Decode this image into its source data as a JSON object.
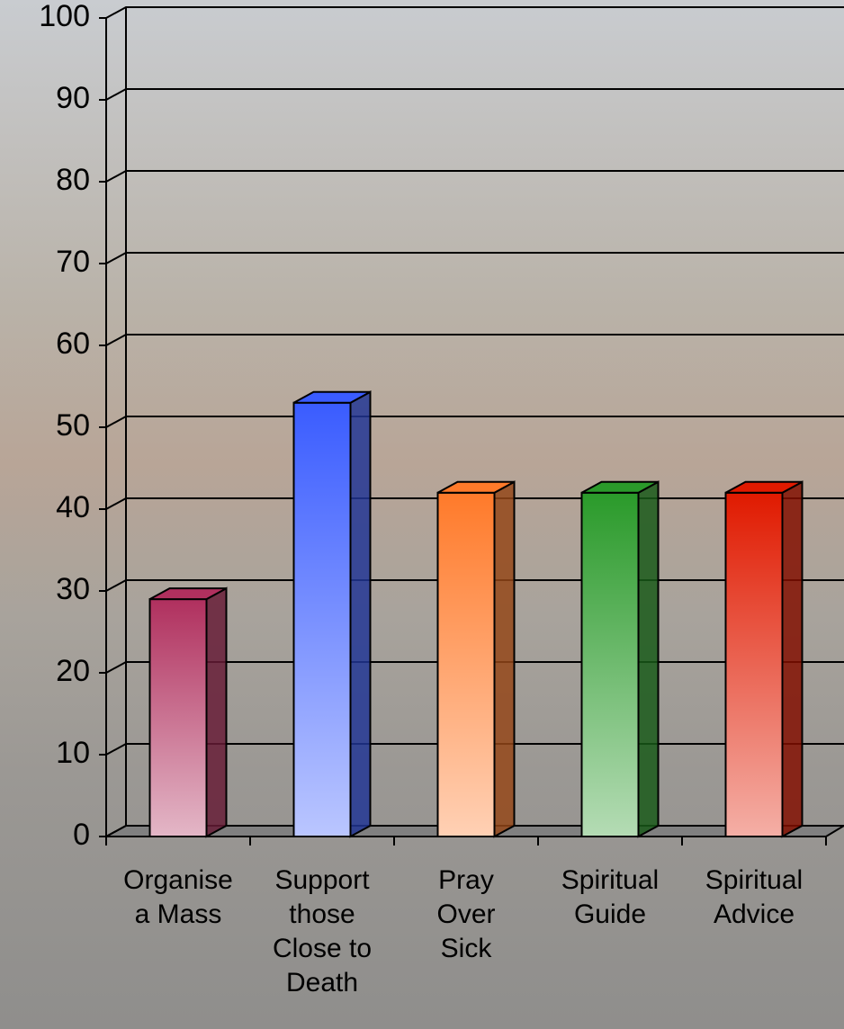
{
  "chart_data": {
    "type": "bar3d",
    "categories": [
      "Organise\na Mass",
      "Support\nthose\nClose to\nDeath",
      "Pray\nOver\nSick",
      "Spiritual\nGuide",
      "Spiritual\nAdvice"
    ],
    "values": [
      29,
      53,
      42,
      42,
      42
    ],
    "colors": [
      "#b0305e",
      "#3a5cff",
      "#ff7a2a",
      "#2a9a2a",
      "#e01a00"
    ],
    "ylim": [
      0,
      100
    ],
    "yticks": [
      0,
      10,
      20,
      30,
      40,
      50,
      60,
      70,
      80,
      90,
      100
    ],
    "grid": true
  }
}
